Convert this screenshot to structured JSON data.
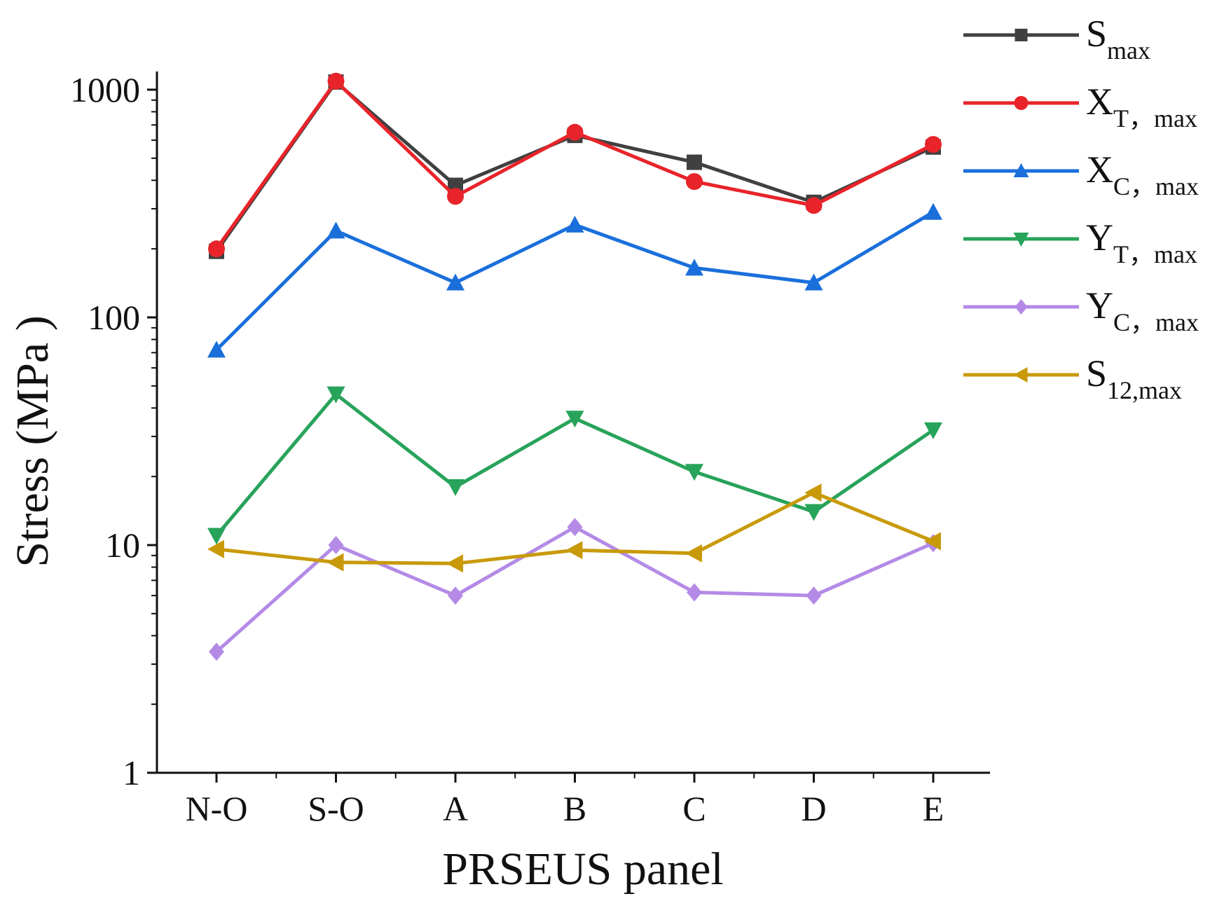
{
  "chart_data": {
    "type": "line",
    "title": "",
    "xlabel": "PRSEUS panel",
    "ylabel": "Stress (MPa )",
    "yscale": "log",
    "ylim": [
      1,
      1000
    ],
    "y_ticks": [
      1,
      10,
      100,
      1000
    ],
    "y_tick_labels": [
      "1",
      "10",
      "100",
      "1000"
    ],
    "categories": [
      "N-O",
      "S-O",
      "A",
      "B",
      "C",
      "D",
      "E"
    ],
    "legend_position": "right",
    "series": [
      {
        "name": "Smax",
        "label_main": "S",
        "label_sub": "max",
        "color": "#404040",
        "marker": "square",
        "values": [
          195,
          1080,
          380,
          630,
          480,
          320,
          560
        ]
      },
      {
        "name": "XT, max",
        "label_main": "X",
        "label_sub": "T，max",
        "color": "#e8242a",
        "marker": "circle",
        "values": [
          200,
          1090,
          340,
          650,
          395,
          310,
          575
        ]
      },
      {
        "name": "XC, max",
        "label_main": "X",
        "label_sub": "C，max",
        "color": "#1a6fdb",
        "marker": "triangle-up",
        "values": [
          72,
          240,
          142,
          255,
          165,
          142,
          290
        ]
      },
      {
        "name": "YT, max",
        "label_main": "Y",
        "label_sub": "T，max",
        "color": "#27a35a",
        "marker": "triangle-down",
        "values": [
          11,
          46,
          18,
          36,
          21,
          14,
          32
        ]
      },
      {
        "name": "YC, max",
        "label_main": "Y",
        "label_sub": "C，max",
        "color": "#b48ae6",
        "marker": "diamond",
        "values": [
          3.4,
          10,
          6,
          12,
          6.2,
          6,
          10.2
        ]
      },
      {
        "name": "S12,max",
        "label_main": "S",
        "label_sub": "12,max",
        "color": "#c89a0a",
        "marker": "triangle-left",
        "values": [
          9.6,
          8.4,
          8.3,
          9.5,
          9.2,
          17,
          10.4
        ]
      }
    ]
  }
}
